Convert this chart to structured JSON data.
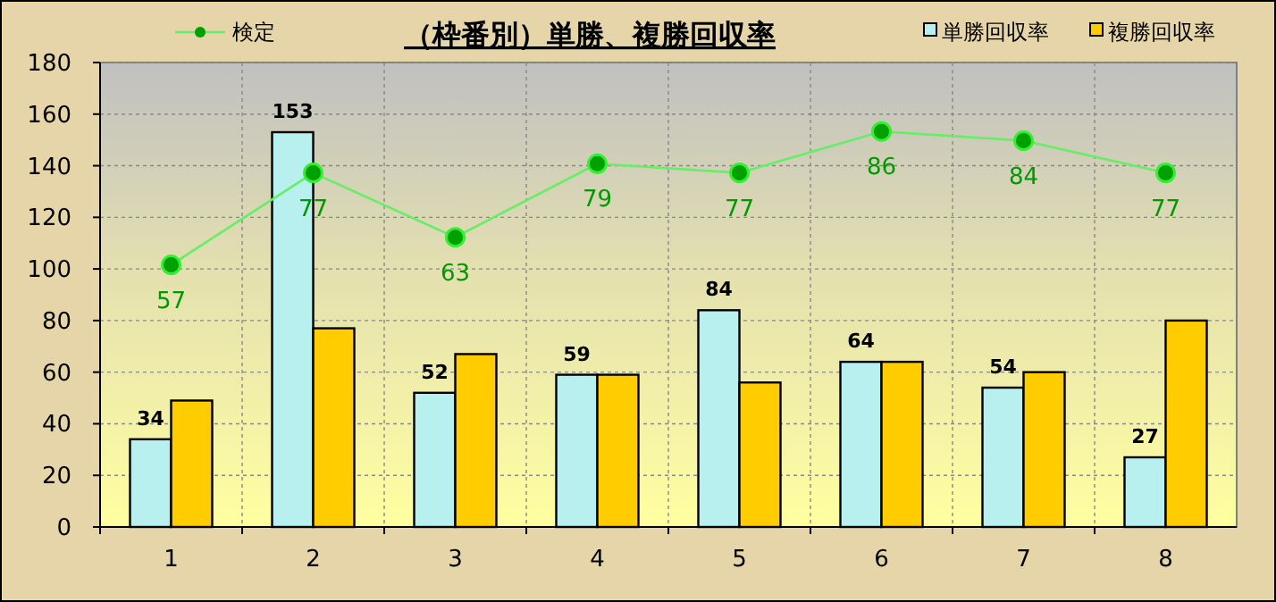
{
  "chart_data": {
    "type": "bar",
    "title": "（枠番別）単勝、複勝回収率",
    "categories": [
      "1",
      "2",
      "3",
      "4",
      "5",
      "6",
      "7",
      "8"
    ],
    "series": [
      {
        "name": "単勝回収率",
        "color": "#b8f0f0",
        "values": [
          34,
          153,
          52,
          59,
          84,
          64,
          54,
          27
        ],
        "value_labels": [
          "34",
          "153",
          "52",
          "59",
          "84",
          "64",
          "54",
          "27"
        ]
      },
      {
        "name": "複勝回収率",
        "color": "#ffcc00",
        "values": [
          49,
          77,
          67,
          59,
          56,
          64,
          60,
          80
        ]
      },
      {
        "name": "検定",
        "type": "line",
        "axis": "y2",
        "color": "#66ee66",
        "values": [
          57,
          77,
          63,
          79,
          77,
          86,
          84,
          77
        ],
        "value_labels": [
          "57",
          "77",
          "63",
          "79",
          "77",
          "86",
          "84",
          "77"
        ]
      }
    ],
    "ylim": [
      0,
      180
    ],
    "yticks": [
      0,
      20,
      40,
      60,
      80,
      100,
      120,
      140,
      160,
      180
    ],
    "y2lim": [
      0,
      101
    ],
    "grid": true,
    "legend": "top",
    "marker": "circle"
  }
}
